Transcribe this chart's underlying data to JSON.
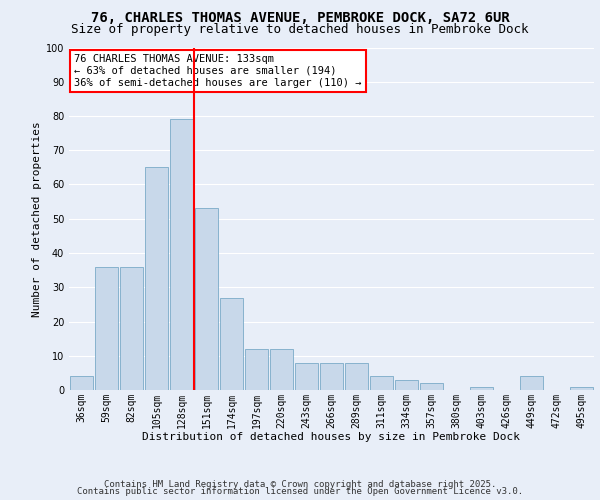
{
  "title_line1": "76, CHARLES THOMAS AVENUE, PEMBROKE DOCK, SA72 6UR",
  "title_line2": "Size of property relative to detached houses in Pembroke Dock",
  "xlabel": "Distribution of detached houses by size in Pembroke Dock",
  "ylabel": "Number of detached properties",
  "categories": [
    "36sqm",
    "59sqm",
    "82sqm",
    "105sqm",
    "128sqm",
    "151sqm",
    "174sqm",
    "197sqm",
    "220sqm",
    "243sqm",
    "266sqm",
    "289sqm",
    "311sqm",
    "334sqm",
    "357sqm",
    "380sqm",
    "403sqm",
    "426sqm",
    "449sqm",
    "472sqm",
    "495sqm"
  ],
  "values": [
    4,
    36,
    36,
    65,
    79,
    53,
    27,
    12,
    12,
    8,
    8,
    8,
    4,
    3,
    2,
    0,
    1,
    0,
    4,
    0,
    1
  ],
  "bar_color": "#c8d8ea",
  "bar_edge_color": "#7aaac8",
  "vline_index": 4,
  "vline_color": "red",
  "annotation_text": "76 CHARLES THOMAS AVENUE: 133sqm\n← 63% of detached houses are smaller (194)\n36% of semi-detached houses are larger (110) →",
  "annotation_box_color": "white",
  "annotation_box_edge": "red",
  "ylim": [
    0,
    100
  ],
  "yticks": [
    0,
    10,
    20,
    30,
    40,
    50,
    60,
    70,
    80,
    90,
    100
  ],
  "bg_color": "#e8eef8",
  "plot_bg_color": "#e8eef8",
  "grid_color": "white",
  "footer_line1": "Contains HM Land Registry data © Crown copyright and database right 2025.",
  "footer_line2": "Contains public sector information licensed under the Open Government Licence v3.0.",
  "title_fontsize": 10,
  "subtitle_fontsize": 9,
  "axis_label_fontsize": 8,
  "tick_fontsize": 7,
  "annotation_fontsize": 7.5,
  "footer_fontsize": 6.5
}
